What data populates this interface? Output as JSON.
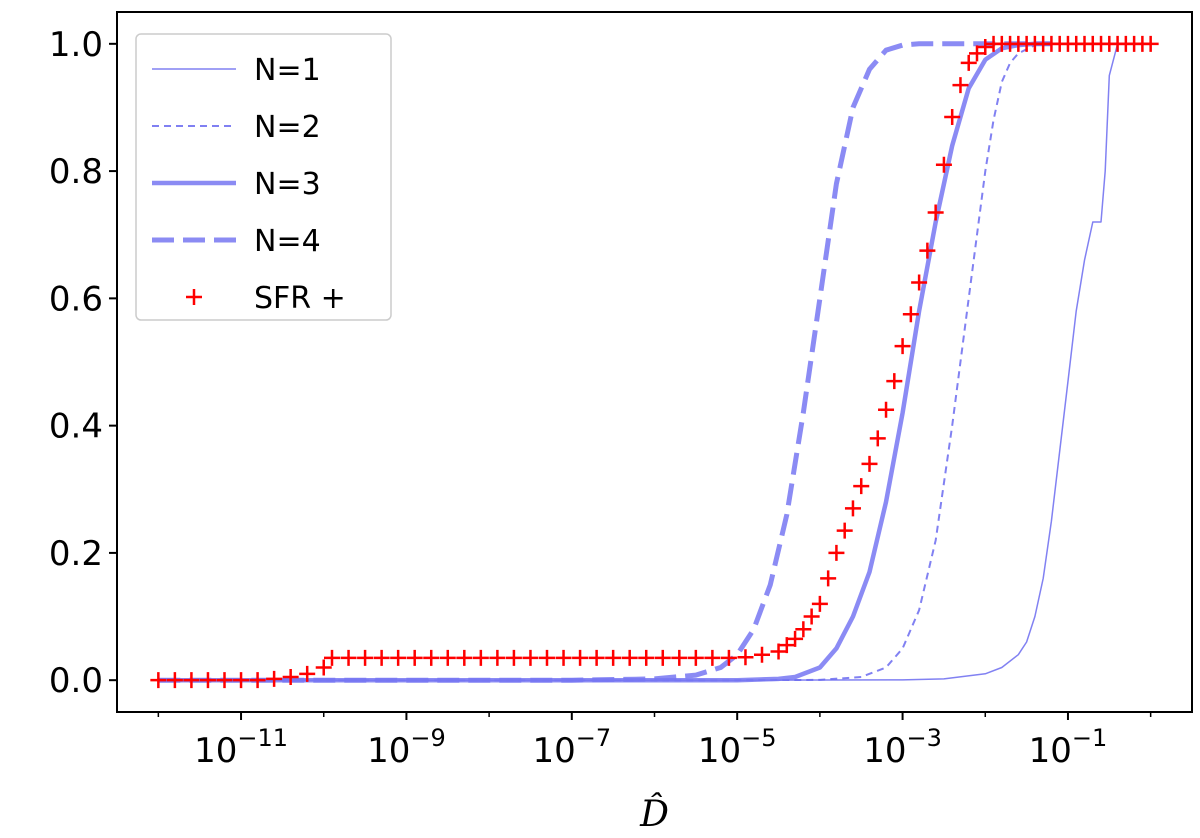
{
  "chart_data": {
    "type": "line",
    "title": "",
    "xlabel": "D̂",
    "ylabel": "",
    "xscale": "log",
    "xlim_exp": [
      -12.5,
      0.5
    ],
    "ylim": [
      -0.05,
      1.05
    ],
    "xticks": [
      {
        "exp": -11,
        "base": "10",
        "sup": "−11"
      },
      {
        "exp": -9,
        "base": "10",
        "sup": "−9"
      },
      {
        "exp": -7,
        "base": "10",
        "sup": "−7"
      },
      {
        "exp": -5,
        "base": "10",
        "sup": "−5"
      },
      {
        "exp": -3,
        "base": "10",
        "sup": "−3"
      },
      {
        "exp": -1,
        "base": "10",
        "sup": "−1"
      }
    ],
    "yticks": [
      {
        "value": 0.0,
        "label": "0.0"
      },
      {
        "value": 0.2,
        "label": "0.2"
      },
      {
        "value": 0.4,
        "label": "0.4"
      },
      {
        "value": 0.6,
        "label": "0.6"
      },
      {
        "value": 0.8,
        "label": "0.8"
      },
      {
        "value": 1.0,
        "label": "1.0"
      }
    ],
    "legend_position": "upper-left",
    "series": [
      {
        "name": "N=1",
        "style": "thin-solid",
        "color": "#6b6bf0",
        "log10_x": [
          -12,
          -5,
          -3,
          -2.5,
          -2,
          -1.8,
          -1.6,
          -1.5,
          -1.4,
          -1.3,
          -1.2,
          -1.1,
          -1.0,
          -0.9,
          -0.8,
          -0.7,
          -0.6,
          -0.55,
          -0.5,
          -0.4,
          -0.3
        ],
        "y": [
          0,
          0,
          0.0005,
          0.002,
          0.01,
          0.02,
          0.04,
          0.06,
          0.1,
          0.16,
          0.25,
          0.36,
          0.47,
          0.58,
          0.66,
          0.72,
          0.72,
          0.8,
          0.95,
          1.0,
          1.0
        ]
      },
      {
        "name": "N=2",
        "style": "thin-dashed",
        "color": "#6b6bf0",
        "log10_x": [
          -12,
          -5,
          -4,
          -3.5,
          -3.2,
          -3.0,
          -2.8,
          -2.6,
          -2.4,
          -2.2,
          -2.1,
          -2.0,
          -1.9,
          -1.8,
          -1.7,
          -1.6,
          -1.4,
          -1.3,
          0
        ],
        "y": [
          0,
          0,
          0.0005,
          0.005,
          0.02,
          0.05,
          0.11,
          0.22,
          0.4,
          0.6,
          0.7,
          0.8,
          0.88,
          0.94,
          0.97,
          0.985,
          0.998,
          1.0,
          1.0
        ]
      },
      {
        "name": "N=3",
        "style": "thick-solid",
        "color": "#7777f2",
        "log10_x": [
          -12,
          -5,
          -4.5,
          -4.3,
          -4.0,
          -3.8,
          -3.6,
          -3.4,
          -3.2,
          -3.0,
          -2.8,
          -2.6,
          -2.4,
          -2.2,
          -2.0,
          -1.8,
          -1.6,
          -1.4,
          -1.2
        ],
        "y": [
          0,
          0,
          0.002,
          0.005,
          0.02,
          0.05,
          0.1,
          0.17,
          0.28,
          0.42,
          0.58,
          0.72,
          0.84,
          0.93,
          0.975,
          0.993,
          0.998,
          1.0,
          1.0
        ]
      },
      {
        "name": "N=4",
        "style": "thick-dashed",
        "color": "#7777f2",
        "log10_x": [
          -12,
          -7,
          -6,
          -5.5,
          -5.2,
          -5.0,
          -4.8,
          -4.6,
          -4.4,
          -4.2,
          -4.0,
          -3.8,
          -3.6,
          -3.4,
          -3.2,
          -3.0,
          -2.8,
          -2.6,
          -2.4,
          -1.2
        ],
        "y": [
          0,
          0,
          0.002,
          0.008,
          0.02,
          0.04,
          0.08,
          0.15,
          0.26,
          0.42,
          0.6,
          0.78,
          0.9,
          0.96,
          0.99,
          0.998,
          1.0,
          1.0,
          1.0,
          1.0
        ]
      },
      {
        "name": "SFR +",
        "style": "marker-plus",
        "color": "#ff0000",
        "log10_x": [
          -12,
          -11.8,
          -11.6,
          -11.4,
          -11.2,
          -11.0,
          -10.8,
          -10.6,
          -10.4,
          -10.2,
          -10.0,
          -9.9,
          -9.7,
          -9.5,
          -9.3,
          -9.1,
          -8.9,
          -8.7,
          -8.5,
          -8.3,
          -8.1,
          -7.9,
          -7.7,
          -7.5,
          -7.3,
          -7.1,
          -6.9,
          -6.7,
          -6.5,
          -6.3,
          -6.1,
          -5.9,
          -5.7,
          -5.5,
          -5.3,
          -5.1,
          -4.9,
          -4.7,
          -4.5,
          -4.4,
          -4.3,
          -4.2,
          -4.1,
          -4.0,
          -3.9,
          -3.8,
          -3.7,
          -3.6,
          -3.5,
          -3.4,
          -3.3,
          -3.2,
          -3.1,
          -3.0,
          -2.9,
          -2.8,
          -2.7,
          -2.6,
          -2.5,
          -2.4,
          -2.3,
          -2.2,
          -2.1,
          -2.0,
          -1.9,
          -1.8,
          -1.7,
          -1.6,
          -1.5,
          -1.4,
          -1.3,
          -1.2,
          -1.1,
          -1.0,
          -0.9,
          -0.8,
          -0.7,
          -0.6,
          -0.5,
          -0.4,
          -0.3,
          -0.2,
          -0.1,
          0.0
        ],
        "y": [
          0,
          0,
          0,
          0,
          0,
          0,
          0,
          0.002,
          0.005,
          0.01,
          0.02,
          0.035,
          0.035,
          0.035,
          0.035,
          0.035,
          0.035,
          0.035,
          0.035,
          0.035,
          0.035,
          0.035,
          0.035,
          0.035,
          0.035,
          0.035,
          0.035,
          0.035,
          0.035,
          0.035,
          0.035,
          0.035,
          0.035,
          0.035,
          0.035,
          0.035,
          0.036,
          0.04,
          0.045,
          0.055,
          0.065,
          0.08,
          0.1,
          0.12,
          0.16,
          0.2,
          0.235,
          0.27,
          0.305,
          0.34,
          0.38,
          0.425,
          0.47,
          0.525,
          0.575,
          0.625,
          0.675,
          0.735,
          0.81,
          0.885,
          0.935,
          0.97,
          0.985,
          0.995,
          1.0,
          1.0,
          1.0,
          1.0,
          1.0,
          1.0,
          1.0,
          1.0,
          1.0,
          1.0,
          1.0,
          1.0,
          1.0,
          1.0,
          1.0,
          1.0,
          1.0,
          1.0,
          1.0,
          1.0
        ]
      }
    ]
  }
}
